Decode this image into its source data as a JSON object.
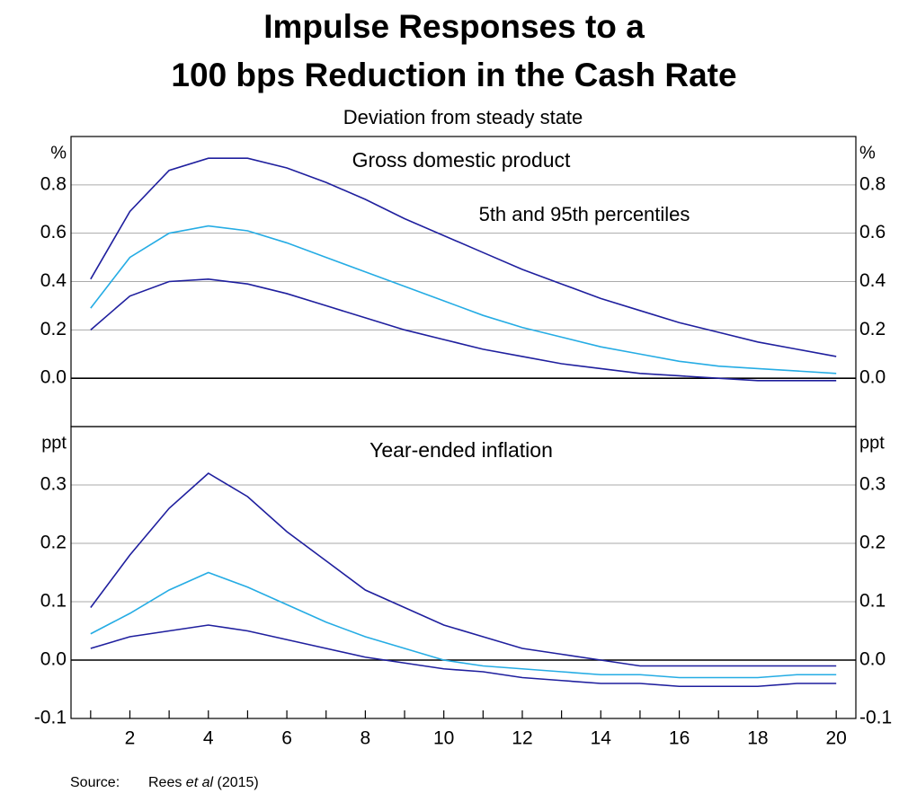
{
  "header": {
    "title": [
      "Impulse Responses to a",
      "100 bps Reduction in the Cash Rate"
    ],
    "subtitle": "Deviation from steady state",
    "source_label": "Source:",
    "source": [
      "Rees ",
      "et al",
      " (2015)"
    ]
  },
  "chart_data": [
    {
      "type": "line",
      "title": "Gross domestic product",
      "unit": "%",
      "annotation": "5th and 95th percentiles",
      "x": [
        1,
        2,
        3,
        4,
        5,
        6,
        7,
        8,
        9,
        10,
        11,
        12,
        13,
        14,
        15,
        16,
        17,
        18,
        19,
        20
      ],
      "series": [
        {
          "color": "#1f1f9e",
          "values": [
            0.41,
            0.69,
            0.86,
            0.91,
            0.91,
            0.87,
            0.81,
            0.74,
            0.66,
            0.59,
            0.52,
            0.45,
            0.39,
            0.33,
            0.28,
            0.23,
            0.19,
            0.15,
            0.12,
            0.09
          ]
        },
        {
          "color": "#25ace4",
          "values": [
            0.29,
            0.5,
            0.6,
            0.63,
            0.61,
            0.56,
            0.5,
            0.44,
            0.38,
            0.32,
            0.26,
            0.21,
            0.17,
            0.13,
            0.1,
            0.07,
            0.05,
            0.04,
            0.03,
            0.02
          ]
        },
        {
          "color": "#1f1f9e",
          "values": [
            0.2,
            0.34,
            0.4,
            0.41,
            0.39,
            0.35,
            0.3,
            0.25,
            0.2,
            0.16,
            0.12,
            0.09,
            0.06,
            0.04,
            0.02,
            0.01,
            0.0,
            -0.01,
            -0.01,
            -0.01
          ]
        }
      ],
      "xlim": [
        0.5,
        20.5
      ],
      "ylim": [
        -0.2,
        1.0
      ],
      "yticks": [
        {
          "value": 0,
          "label": "0.0"
        },
        0.2,
        0.4,
        0.6,
        0.8
      ],
      "grid": true
    },
    {
      "type": "line",
      "title": "Year-ended inflation",
      "unit": "ppt",
      "x": [
        1,
        2,
        3,
        4,
        5,
        6,
        7,
        8,
        9,
        10,
        11,
        12,
        13,
        14,
        15,
        16,
        17,
        18,
        19,
        20
      ],
      "series": [
        {
          "color": "#1f1f9e",
          "values": [
            0.09,
            0.18,
            0.26,
            0.32,
            0.28,
            0.22,
            0.17,
            0.12,
            0.09,
            0.06,
            0.04,
            0.02,
            0.01,
            0.0,
            -0.01,
            -0.01,
            -0.01,
            -0.01,
            -0.01,
            -0.01
          ]
        },
        {
          "color": "#25ace4",
          "values": [
            0.045,
            0.08,
            0.12,
            0.15,
            0.125,
            0.095,
            0.065,
            0.04,
            0.02,
            0.0,
            -0.01,
            -0.015,
            -0.02,
            -0.025,
            -0.025,
            -0.03,
            -0.03,
            -0.03,
            -0.025,
            -0.025
          ]
        },
        {
          "color": "#1f1f9e",
          "values": [
            0.02,
            0.04,
            0.05,
            0.06,
            0.05,
            0.035,
            0.02,
            0.005,
            -0.005,
            -0.015,
            -0.02,
            -0.03,
            -0.035,
            -0.04,
            -0.04,
            -0.045,
            -0.045,
            -0.045,
            -0.04,
            -0.04
          ]
        }
      ],
      "xlim": [
        0.5,
        20.5
      ],
      "ylim": [
        -0.1,
        0.4
      ],
      "yticks": [
        -0.1,
        {
          "value": 0,
          "label": "0.0"
        },
        0.1,
        0.2,
        0.3
      ],
      "grid": true,
      "xticks": [
        2,
        4,
        6,
        8,
        10,
        12,
        14,
        16,
        18,
        20
      ],
      "xminor_ticks": [
        1,
        3,
        5,
        7,
        9,
        11,
        13,
        15,
        17,
        19
      ]
    }
  ]
}
